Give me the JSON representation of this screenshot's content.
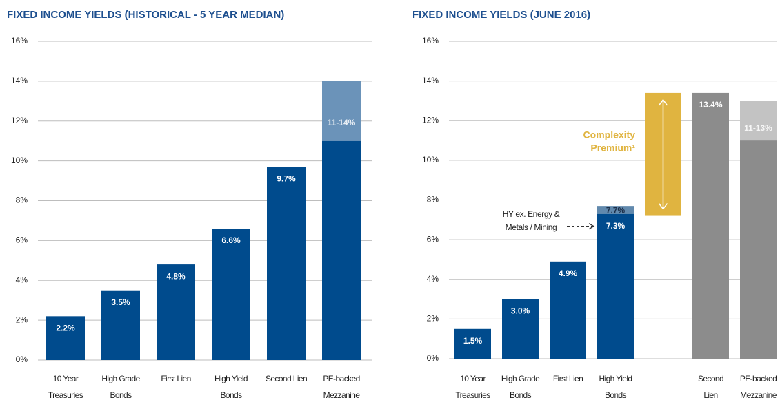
{
  "chart_data": [
    {
      "type": "bar",
      "title": "FIXED INCOME YIELDS (HISTORICAL - 5 YEAR MEDIAN)",
      "categories": [
        [
          "10 Year",
          "Treasuries"
        ],
        [
          "High Grade",
          "Bonds"
        ],
        [
          "First Lien"
        ],
        [
          "High Yield",
          "Bonds"
        ],
        [
          "Second Lien"
        ],
        [
          "PE-backed",
          "Mezzanine"
        ]
      ],
      "values": [
        2.2,
        3.5,
        4.8,
        6.6,
        9.7,
        11
      ],
      "value_labels": [
        "2.2%",
        "3.5%",
        "4.8%",
        "6.6%",
        "9.7%",
        null
      ],
      "colors": [
        "#004b8d",
        "#004b8d",
        "#004b8d",
        "#004b8d",
        "#004b8d",
        "#004b8d"
      ],
      "ranges": [
        null,
        null,
        null,
        null,
        null,
        [
          11,
          14
        ]
      ],
      "range_labels": [
        null,
        null,
        null,
        null,
        null,
        "11-14%"
      ],
      "range_colors": [
        null,
        null,
        null,
        null,
        null,
        "#6b93b9"
      ],
      "ylim": [
        0,
        16
      ],
      "yticks": [
        {
          "value": 0,
          "label": "0%"
        },
        {
          "value": 2,
          "label": "2%"
        },
        {
          "value": 4,
          "label": "4%"
        },
        {
          "value": 6,
          "label": "6%"
        },
        {
          "value": 8,
          "label": "8%"
        },
        {
          "value": 10,
          "label": "10%"
        },
        {
          "value": 12,
          "label": "12%"
        },
        {
          "value": 14,
          "label": "14%"
        },
        {
          "value": 16,
          "label": "16%"
        }
      ],
      "grid": true
    },
    {
      "type": "bar",
      "title": "FIXED INCOME YIELDS (JUNE 2016)",
      "categories": [
        [
          "10 Year",
          "Treasuries"
        ],
        [
          "High Grade",
          "Bonds"
        ],
        [
          "First Lien"
        ],
        [
          "High Yield",
          "Bonds"
        ],
        null,
        [
          "Second",
          "Lien"
        ],
        [
          "PE-backed",
          "Mezzanine"
        ]
      ],
      "values": [
        1.5,
        3.0,
        4.9,
        7.3,
        null,
        13.4,
        11
      ],
      "value_labels": [
        "1.5%",
        "3.0%",
        "4.9%",
        "7.3%",
        null,
        "13.4%",
        null
      ],
      "colors": [
        "#004b8d",
        "#004b8d",
        "#004b8d",
        "#004b8d",
        null,
        "#8c8c8c",
        "#8c8c8c"
      ],
      "ranges": [
        null,
        null,
        null,
        [
          7.3,
          7.7
        ],
        [
          7.2,
          13.4
        ],
        null,
        [
          11,
          13
        ]
      ],
      "range_labels": [
        null,
        null,
        null,
        "7.7%",
        null,
        null,
        "11-13%"
      ],
      "range_colors": [
        null,
        null,
        null,
        "#6189ad",
        "#e0b440",
        null,
        "#c3c3c3"
      ],
      "annotations": [
        [
          "HY ex. Energy &",
          "Metals / Mining"
        ],
        [
          "Complexity",
          "Premium¹"
        ]
      ],
      "ylim": [
        0,
        16
      ],
      "yticks": [
        {
          "value": 0,
          "label": "0%"
        },
        {
          "value": 2,
          "label": "2%"
        },
        {
          "value": 4,
          "label": "4%"
        },
        {
          "value": 6,
          "label": "6%"
        },
        {
          "value": 8,
          "label": "8%"
        },
        {
          "value": 10,
          "label": "10%"
        },
        {
          "value": 12,
          "label": "12%"
        },
        {
          "value": 14,
          "label": "14%"
        },
        {
          "value": 16,
          "label": "16%"
        }
      ],
      "grid": true
    }
  ]
}
